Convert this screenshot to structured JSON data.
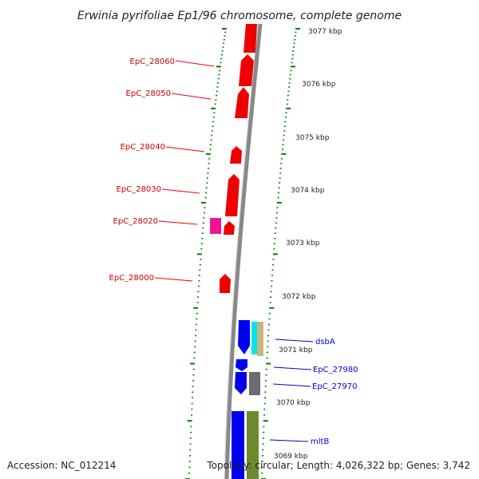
{
  "title": "Erwinia pyrifoliae Ep1/96 chromosome, complete genome",
  "footer": {
    "accession": "Accession: NC_012214",
    "topology": "Topology: circular; Length: 4,026,322 bp; Genes: 3,742"
  },
  "colors": {
    "forward_gene": "#ee0000",
    "reverse_gene": "#0000ee",
    "tick": "#0a7a0a",
    "backbone": "#888888",
    "cyan_gene": "#00e5f0",
    "tan_gene": "#c8b47a",
    "gray_gene": "#6b6b73",
    "olive_gene": "#6e8a2e",
    "magenta_gene": "#ee1493"
  },
  "kbp_labels": [
    "3077 kbp",
    "3076 kbp",
    "3075 kbp",
    "3074 kbp",
    "3073 kbp",
    "3072 kbp",
    "3071 kbp",
    "3070 kbp",
    "3069 kbp"
  ],
  "gene_labels": [
    "EpC_28060",
    "EpC_28050",
    "EpC_28040",
    "EpC_28030",
    "EpC_28020",
    "EpC_28000",
    "dsbA",
    "EpC_27980",
    "EpC_27970",
    "mltB"
  ]
}
